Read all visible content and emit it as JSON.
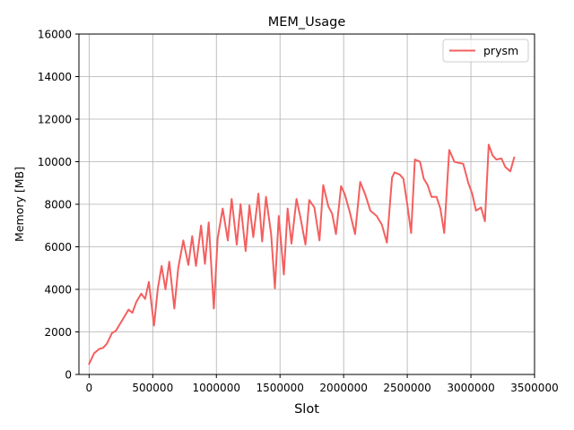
{
  "chart_data": {
    "type": "line",
    "title": "MEM_Usage",
    "xlabel": "Slot",
    "ylabel": "Memory [MB]",
    "xlim": [
      -80000,
      3500000
    ],
    "ylim": [
      0,
      16000
    ],
    "xticks": [
      0,
      500000,
      1000000,
      1500000,
      2000000,
      2500000,
      3000000,
      3500000
    ],
    "xtick_labels": [
      "0",
      "500000",
      "1000000",
      "1500000",
      "2000000",
      "2500000",
      "3000000",
      "3500000"
    ],
    "yticks": [
      0,
      2000,
      4000,
      6000,
      8000,
      10000,
      12000,
      14000,
      16000
    ],
    "ytick_labels": [
      "0",
      "2000",
      "4000",
      "6000",
      "8000",
      "10000",
      "12000",
      "14000",
      "16000"
    ],
    "grid": true,
    "legend_position": "upper right",
    "series": [
      {
        "name": "prysm",
        "color": "#f45f5f",
        "x": [
          0,
          40000,
          80000,
          110000,
          140000,
          180000,
          210000,
          240000,
          270000,
          310000,
          340000,
          370000,
          410000,
          440000,
          470000,
          510000,
          540000,
          570000,
          600000,
          630000,
          670000,
          700000,
          740000,
          780000,
          810000,
          840000,
          880000,
          910000,
          940000,
          980000,
          1010000,
          1050000,
          1090000,
          1120000,
          1160000,
          1190000,
          1230000,
          1260000,
          1290000,
          1330000,
          1360000,
          1390000,
          1430000,
          1460000,
          1490000,
          1530000,
          1560000,
          1590000,
          1630000,
          1660000,
          1700000,
          1730000,
          1770000,
          1810000,
          1840000,
          1880000,
          1910000,
          1940000,
          1980000,
          2010000,
          2050000,
          2090000,
          2130000,
          2170000,
          2210000,
          2260000,
          2300000,
          2340000,
          2380000,
          2400000,
          2440000,
          2470000,
          2500000,
          2530000,
          2560000,
          2600000,
          2630000,
          2660000,
          2690000,
          2730000,
          2760000,
          2790000,
          2830000,
          2870000,
          2900000,
          2940000,
          2980000,
          3010000,
          3040000,
          3080000,
          3110000,
          3140000,
          3170000,
          3200000,
          3240000,
          3270000,
          3310000,
          3340000
        ],
        "y": [
          500,
          1000,
          1200,
          1250,
          1450,
          1950,
          2050,
          2350,
          2650,
          3050,
          2900,
          3400,
          3800,
          3550,
          4350,
          2300,
          4050,
          5100,
          4000,
          5300,
          3100,
          5000,
          6300,
          5150,
          6500,
          5100,
          7000,
          5200,
          7150,
          3100,
          6400,
          7800,
          6300,
          8250,
          6100,
          8000,
          5800,
          7950,
          6450,
          8500,
          6250,
          8350,
          6600,
          4050,
          7450,
          4700,
          7800,
          6150,
          8250,
          7400,
          6100,
          8200,
          7850,
          6300,
          8900,
          7900,
          7550,
          6600,
          8850,
          8450,
          7600,
          6600,
          9050,
          8450,
          7700,
          7450,
          7050,
          6200,
          9250,
          9500,
          9400,
          9200,
          8000,
          6650,
          10100,
          10000,
          9200,
          8900,
          8350,
          8350,
          7800,
          6650,
          10550,
          10000,
          9950,
          9900,
          9000,
          8500,
          7700,
          7850,
          7200,
          10800,
          10300,
          10100,
          10150,
          9750,
          9550,
          10200
        ]
      }
    ]
  }
}
